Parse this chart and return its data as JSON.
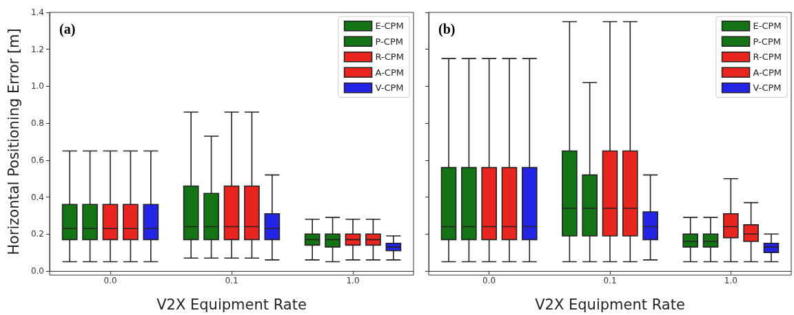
{
  "chart_data": [
    {
      "type": "box",
      "xlabel": "V2X Equipment Rate",
      "ylabel": "Horizontal Positioning Error [m]",
      "categories": [
        "0.0",
        "0.1",
        "1.0"
      ],
      "ylim": [
        0,
        1.4
      ],
      "yticks": [
        {
          "value": 0,
          "label": "0.0"
        },
        0.2,
        0.4,
        0.6,
        0.8,
        {
          "value": 1,
          "label": "1.0"
        },
        1.2,
        1.4
      ],
      "grid": false,
      "legend": "top right",
      "annotations": [
        "(a)"
      ],
      "series": [
        {
          "name": "E-CPM",
          "color": "#147314",
          "boxes": [
            {
              "low": 0.05,
              "q1": 0.17,
              "median": 0.23,
              "q3": 0.36,
              "high": 0.65
            },
            {
              "low": 0.07,
              "q1": 0.17,
              "median": 0.24,
              "q3": 0.46,
              "high": 0.86
            },
            {
              "low": 0.06,
              "q1": 0.14,
              "median": 0.17,
              "q3": 0.2,
              "high": 0.28
            }
          ]
        },
        {
          "name": "P-CPM",
          "color": "#147314",
          "boxes": [
            {
              "low": 0.05,
              "q1": 0.17,
              "median": 0.23,
              "q3": 0.36,
              "high": 0.65
            },
            {
              "low": 0.07,
              "q1": 0.17,
              "median": 0.24,
              "q3": 0.42,
              "high": 0.73
            },
            {
              "low": 0.05,
              "q1": 0.13,
              "median": 0.17,
              "q3": 0.2,
              "high": 0.29
            }
          ]
        },
        {
          "name": "R-CPM",
          "color": "#e8251f",
          "boxes": [
            {
              "low": 0.05,
              "q1": 0.17,
              "median": 0.23,
              "q3": 0.36,
              "high": 0.65
            },
            {
              "low": 0.07,
              "q1": 0.17,
              "median": 0.24,
              "q3": 0.46,
              "high": 0.86
            },
            {
              "low": 0.06,
              "q1": 0.14,
              "median": 0.17,
              "q3": 0.2,
              "high": 0.28
            }
          ]
        },
        {
          "name": "A-CPM",
          "color": "#e8251f",
          "boxes": [
            {
              "low": 0.05,
              "q1": 0.17,
              "median": 0.23,
              "q3": 0.36,
              "high": 0.65
            },
            {
              "low": 0.07,
              "q1": 0.17,
              "median": 0.24,
              "q3": 0.46,
              "high": 0.86
            },
            {
              "low": 0.06,
              "q1": 0.14,
              "median": 0.17,
              "q3": 0.2,
              "high": 0.28
            }
          ]
        },
        {
          "name": "V-CPM",
          "color": "#2424e6",
          "boxes": [
            {
              "low": 0.05,
              "q1": 0.17,
              "median": 0.23,
              "q3": 0.36,
              "high": 0.65
            },
            {
              "low": 0.06,
              "q1": 0.17,
              "median": 0.23,
              "q3": 0.31,
              "high": 0.52
            },
            {
              "low": 0.06,
              "q1": 0.11,
              "median": 0.13,
              "q3": 0.15,
              "high": 0.19
            }
          ]
        }
      ]
    },
    {
      "type": "box",
      "xlabel": "V2X Equipment Rate",
      "categories": [
        "0.0",
        "0.1",
        "1.0"
      ],
      "ylim": [
        0,
        1.4
      ],
      "yticks": [
        {
          "value": 0,
          "label": null
        },
        {
          "value": 0.2,
          "label": null
        },
        {
          "value": 0.4,
          "label": null
        },
        {
          "value": 0.6,
          "label": null
        },
        {
          "value": 0.8,
          "label": null
        },
        {
          "value": 1,
          "label": null
        },
        {
          "value": 1.2,
          "label": null
        },
        {
          "value": 1.4,
          "label": null
        }
      ],
      "tick_labels": "x",
      "grid": false,
      "legend": "top right",
      "annotations": [
        "(b)"
      ],
      "series": [
        {
          "name": "E-CPM",
          "color": "#147314",
          "boxes": [
            {
              "low": 0.05,
              "q1": 0.17,
              "median": 0.24,
              "q3": 0.56,
              "high": 1.15
            },
            {
              "low": 0.05,
              "q1": 0.19,
              "median": 0.34,
              "q3": 0.65,
              "high": 1.35
            },
            {
              "low": 0.05,
              "q1": 0.13,
              "median": 0.16,
              "q3": 0.2,
              "high": 0.29
            }
          ]
        },
        {
          "name": "P-CPM",
          "color": "#147314",
          "boxes": [
            {
              "low": 0.05,
              "q1": 0.17,
              "median": 0.24,
              "q3": 0.56,
              "high": 1.15
            },
            {
              "low": 0.05,
              "q1": 0.19,
              "median": 0.34,
              "q3": 0.52,
              "high": 1.02
            },
            {
              "low": 0.05,
              "q1": 0.13,
              "median": 0.16,
              "q3": 0.2,
              "high": 0.29
            }
          ]
        },
        {
          "name": "R-CPM",
          "color": "#e8251f",
          "boxes": [
            {
              "low": 0.05,
              "q1": 0.17,
              "median": 0.24,
              "q3": 0.56,
              "high": 1.15
            },
            {
              "low": 0.05,
              "q1": 0.19,
              "median": 0.34,
              "q3": 0.65,
              "high": 1.35
            },
            {
              "low": 0.05,
              "q1": 0.18,
              "median": 0.24,
              "q3": 0.31,
              "high": 0.5
            }
          ]
        },
        {
          "name": "A-CPM",
          "color": "#e8251f",
          "boxes": [
            {
              "low": 0.05,
              "q1": 0.17,
              "median": 0.24,
              "q3": 0.56,
              "high": 1.15
            },
            {
              "low": 0.05,
              "q1": 0.19,
              "median": 0.34,
              "q3": 0.65,
              "high": 1.35
            },
            {
              "low": 0.05,
              "q1": 0.16,
              "median": 0.2,
              "q3": 0.25,
              "high": 0.37
            }
          ]
        },
        {
          "name": "V-CPM",
          "color": "#2424e6",
          "boxes": [
            {
              "low": 0.05,
              "q1": 0.17,
              "median": 0.24,
              "q3": 0.56,
              "high": 1.15
            },
            {
              "low": 0.06,
              "q1": 0.17,
              "median": 0.24,
              "q3": 0.32,
              "high": 0.52
            },
            {
              "low": 0.05,
              "q1": 0.1,
              "median": 0.13,
              "q3": 0.15,
              "high": 0.2
            }
          ]
        }
      ]
    }
  ]
}
